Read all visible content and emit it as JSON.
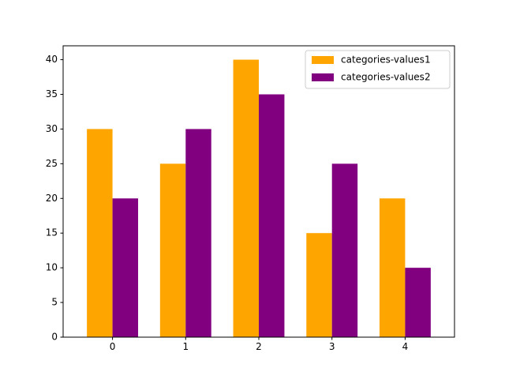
{
  "chart_data": {
    "type": "bar",
    "categories": [
      "0",
      "1",
      "2",
      "3",
      "4"
    ],
    "series": [
      {
        "name": "categories-values1",
        "values": [
          30,
          25,
          40,
          15,
          20
        ],
        "color": "#ffa500"
      },
      {
        "name": "categories-values2",
        "values": [
          20,
          30,
          35,
          25,
          10
        ],
        "color": "#800080"
      }
    ],
    "title": "",
    "xlabel": "",
    "ylabel": "",
    "ylim": [
      0,
      42
    ],
    "yticks": [
      0,
      5,
      10,
      15,
      20,
      25,
      30,
      35,
      40
    ],
    "grid": false,
    "legend_position": "top-right"
  }
}
